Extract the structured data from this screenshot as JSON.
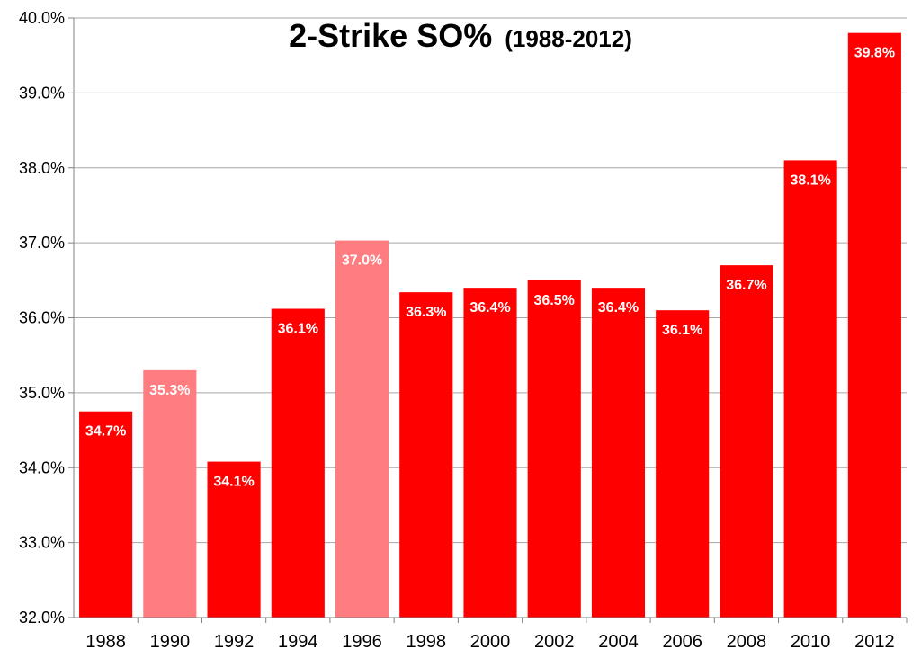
{
  "chart_data": {
    "type": "bar",
    "title": "2-Strike SO%",
    "subtitle": "(1988-2012)",
    "categories": [
      "1988",
      "1990",
      "1992",
      "1994",
      "1996",
      "1998",
      "2000",
      "2002",
      "2004",
      "2006",
      "2008",
      "2010",
      "2012"
    ],
    "values": [
      34.75,
      35.3,
      34.08,
      36.12,
      37.03,
      36.34,
      36.4,
      36.5,
      36.4,
      36.1,
      36.7,
      38.1,
      39.8
    ],
    "data_labels": [
      "34.7%",
      "35.3%",
      "34.1%",
      "36.1%",
      "37.0%",
      "36.3%",
      "36.4%",
      "36.5%",
      "36.4%",
      "36.1%",
      "36.7%",
      "38.1%",
      "39.8%"
    ],
    "y_tick_labels": [
      "32.0%",
      "33.0%",
      "34.0%",
      "35.0%",
      "36.0%",
      "37.0%",
      "38.0%",
      "39.0%",
      "40.0%"
    ],
    "ylim": [
      32,
      40
    ],
    "xlabel": "",
    "ylabel": "",
    "grid": true,
    "legend": "none",
    "colors": {
      "bar": "#ff0000",
      "bar_highlight": "#ff7c80",
      "highlighted_categories": [
        "1990",
        "1996"
      ]
    }
  }
}
